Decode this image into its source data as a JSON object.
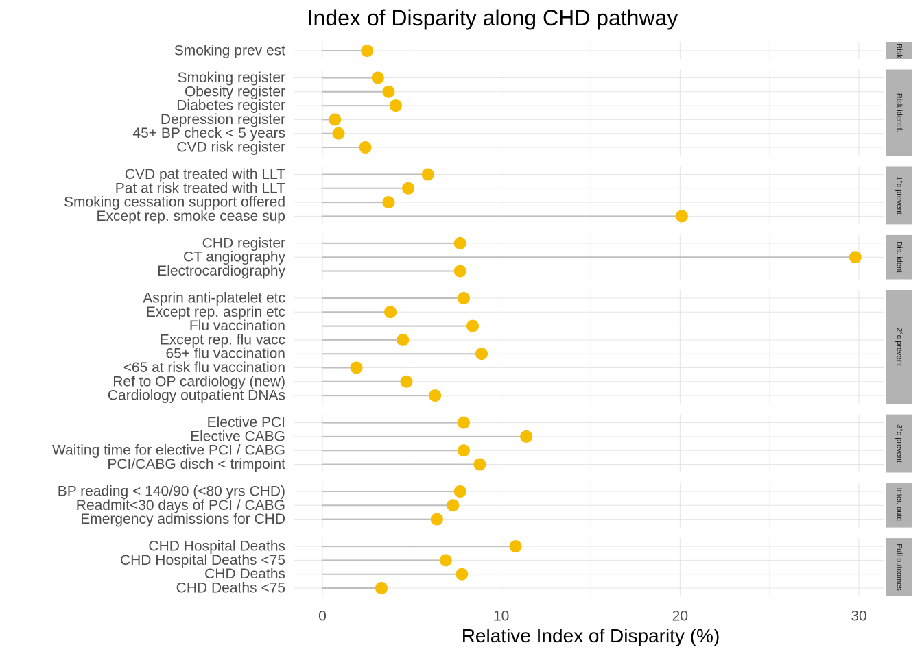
{
  "chart_data": {
    "type": "lollipop",
    "title": "Index of Disparity along CHD pathway",
    "xlabel": "Relative Index of Disparity (%)",
    "ylabel": "",
    "xlim": [
      0,
      30
    ],
    "xticks": [
      0,
      10,
      20,
      30
    ],
    "grid": true,
    "legend": "none",
    "colors": {
      "point": "#F7BE00",
      "stem": "#BEBEBE",
      "strip": "#B3B3B3",
      "grid": "#E5E5E5"
    },
    "panels": [
      {
        "label": "Risk",
        "items": [
          {
            "name": "Smoking prev est",
            "value": 2.5
          }
        ]
      },
      {
        "label": "Risk identif.",
        "items": [
          {
            "name": "Smoking register",
            "value": 3.1
          },
          {
            "name": "Obesity register",
            "value": 3.7
          },
          {
            "name": "Diabetes register",
            "value": 4.1
          },
          {
            "name": "Depression register",
            "value": 0.7
          },
          {
            "name": "45+ BP check < 5 years",
            "value": 0.9
          },
          {
            "name": "CVD risk register",
            "value": 2.4
          }
        ]
      },
      {
        "label": "1°c prevent",
        "items": [
          {
            "name": "CVD pat treated with LLT",
            "value": 5.9
          },
          {
            "name": "Pat at risk treated with LLT",
            "value": 4.8
          },
          {
            "name": "Smoking cessation support offered",
            "value": 3.7
          },
          {
            "name": "Except rep. smoke cease sup",
            "value": 20.1
          }
        ]
      },
      {
        "label": "Dis. ident",
        "items": [
          {
            "name": "CHD register",
            "value": 7.7
          },
          {
            "name": "CT angiography",
            "value": 29.8
          },
          {
            "name": "Electrocardiography",
            "value": 7.7
          }
        ]
      },
      {
        "label": "2°c prevent",
        "items": [
          {
            "name": "Asprin anti-platelet etc",
            "value": 7.9
          },
          {
            "name": "Except rep. asprin etc",
            "value": 3.8
          },
          {
            "name": "Flu vaccination",
            "value": 8.4
          },
          {
            "name": "Except rep. flu vacc",
            "value": 4.5
          },
          {
            "name": "65+ flu vaccination",
            "value": 8.9
          },
          {
            "name": "<65 at risk flu vaccination",
            "value": 1.9
          },
          {
            "name": "Ref to OP cardiology (new)",
            "value": 4.7
          },
          {
            "name": "Cardiology outpatient DNAs",
            "value": 6.3
          }
        ]
      },
      {
        "label": "3°c prevent",
        "items": [
          {
            "name": "Elective PCI",
            "value": 7.9
          },
          {
            "name": "Elective CABG",
            "value": 11.4
          },
          {
            "name": "Waiting time for elective PCI / CABG",
            "value": 7.9
          },
          {
            "name": "PCI/CABG disch < trimpoint",
            "value": 8.8
          }
        ]
      },
      {
        "label": "Inter. outc.",
        "items": [
          {
            "name": "BP reading < 140/90 (<80 yrs CHD)",
            "value": 7.7
          },
          {
            "name": "Readmit<30 days of PCI / CABG",
            "value": 7.3
          },
          {
            "name": "Emergency admissions for CHD",
            "value": 6.4
          }
        ]
      },
      {
        "label": "Full outcomes",
        "items": [
          {
            "name": "CHD Hospital Deaths",
            "value": 10.8
          },
          {
            "name": "CHD Hospital Deaths <75",
            "value": 6.9
          },
          {
            "name": "CHD Deaths",
            "value": 7.8
          },
          {
            "name": "CHD Deaths <75",
            "value": 3.3
          }
        ]
      }
    ]
  }
}
